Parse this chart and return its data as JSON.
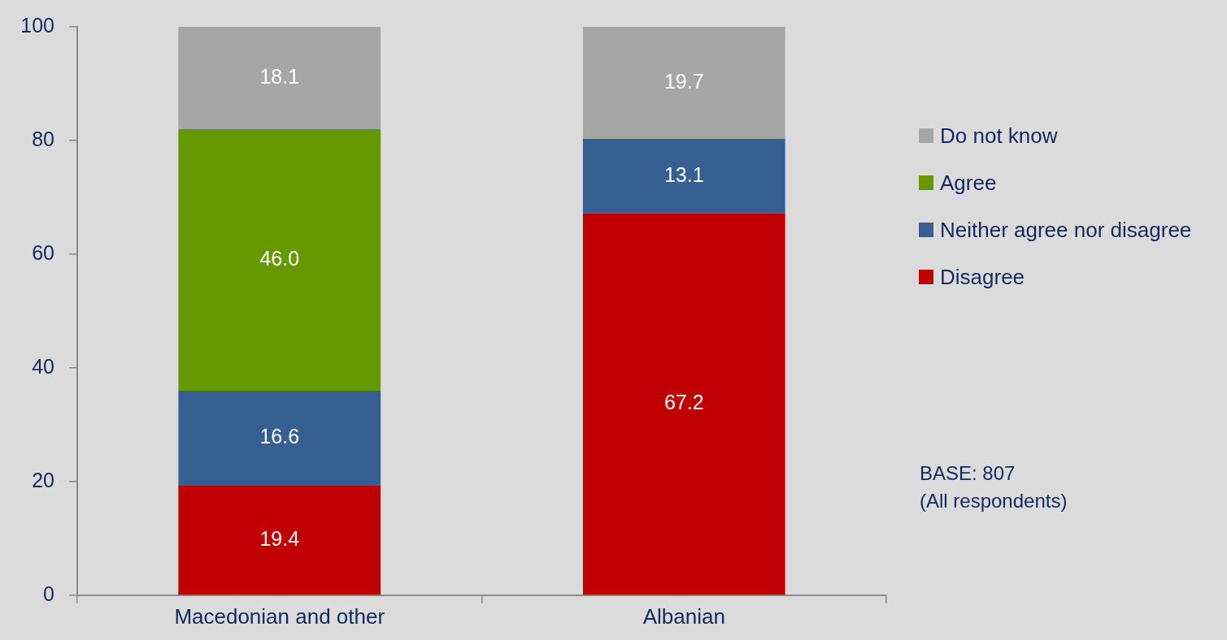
{
  "chart_data": {
    "type": "bar",
    "stacked": true,
    "categories": [
      "Macedonian and other",
      "Albanian"
    ],
    "series": [
      {
        "name": "Disagree",
        "color": "#c00000",
        "values": [
          19.4,
          67.2
        ],
        "value_labels": [
          "19.4",
          "67.2"
        ]
      },
      {
        "name": "Neither agree nor disagree",
        "color": "#376092",
        "values": [
          16.6,
          13.1
        ],
        "value_labels": [
          "16.6",
          "13.1"
        ]
      },
      {
        "name": "Agree",
        "color": "#669900",
        "values": [
          46.0,
          null
        ],
        "value_labels": [
          "46.0",
          null
        ]
      },
      {
        "name": "Do not know",
        "color": "#a6a6a6",
        "values": [
          18.1,
          19.7
        ],
        "value_labels": [
          "18.1",
          "19.7"
        ]
      }
    ],
    "ylim": [
      0,
      100
    ],
    "yticks": [
      0,
      20,
      40,
      60,
      80,
      100
    ],
    "grid": false,
    "legend": "right",
    "annotations": [
      "BASE: 807\n(All respondents)"
    ]
  }
}
